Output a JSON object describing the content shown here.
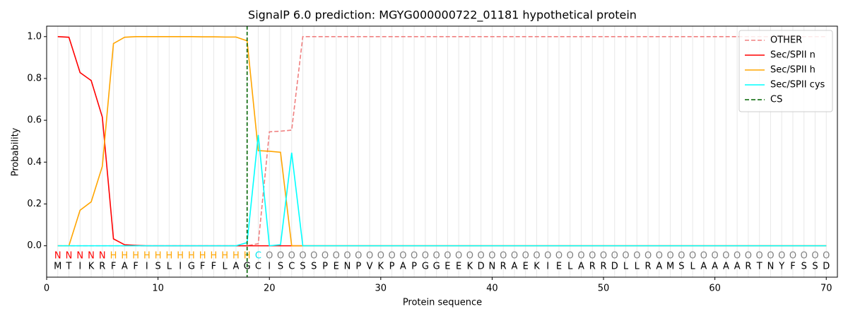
{
  "chart_data": {
    "type": "line",
    "title": "SignalP 6.0 prediction: MGYG000000722_01181 hypothetical protein",
    "xlabel": "Protein sequence",
    "ylabel": "Probability",
    "xlim": [
      0,
      71
    ],
    "ylim": [
      -0.15,
      1.05
    ],
    "xticks": [
      0,
      10,
      20,
      30,
      40,
      50,
      60,
      70
    ],
    "yticks": [
      {
        "value": 0,
        "label": "0.0"
      },
      0.2,
      0.4,
      0.6,
      0.8,
      {
        "value": 1,
        "label": "1.0"
      }
    ],
    "x": [
      1,
      2,
      3,
      4,
      5,
      6,
      7,
      8,
      9,
      10,
      11,
      12,
      13,
      14,
      15,
      16,
      17,
      18,
      19,
      20,
      21,
      22,
      23,
      24,
      25,
      26,
      27,
      28,
      29,
      30,
      31,
      32,
      33,
      34,
      35,
      36,
      37,
      38,
      39,
      40,
      41,
      42,
      43,
      44,
      45,
      46,
      47,
      48,
      49,
      50,
      51,
      52,
      53,
      54,
      55,
      56,
      57,
      58,
      59,
      60,
      61,
      62,
      63,
      64,
      65,
      66,
      67,
      68,
      69,
      70
    ],
    "sequence": [
      "M",
      "T",
      "I",
      "K",
      "R",
      "F",
      "A",
      "F",
      "I",
      "S",
      "L",
      "I",
      "G",
      "F",
      "F",
      "L",
      "A",
      "G",
      "C",
      "I",
      "S",
      "C",
      "S",
      "S",
      "P",
      "E",
      "N",
      "P",
      "V",
      "K",
      "P",
      "A",
      "P",
      "G",
      "G",
      "E",
      "E",
      "K",
      "D",
      "N",
      "R",
      "A",
      "E",
      "K",
      "I",
      "E",
      "L",
      "A",
      "R",
      "R",
      "D",
      "L",
      "L",
      "R",
      "A",
      "M",
      "S",
      "L",
      "A",
      "A",
      "A",
      "A",
      "R",
      "T",
      "N",
      "Y",
      "F",
      "S",
      "S",
      "D"
    ],
    "annotation": [
      "N",
      "N",
      "N",
      "N",
      "N",
      "H",
      "H",
      "H",
      "H",
      "H",
      "H",
      "H",
      "H",
      "H",
      "H",
      "H",
      "H",
      "H",
      "C",
      "O",
      "O",
      "O",
      "O",
      "O",
      "O",
      "O",
      "O",
      "O",
      "O",
      "O",
      "O",
      "O",
      "O",
      "O",
      "O",
      "O",
      "O",
      "O",
      "O",
      "O",
      "O",
      "O",
      "O",
      "O",
      "O",
      "O",
      "O",
      "O",
      "O",
      "O",
      "O",
      "O",
      "O",
      "O",
      "O",
      "O",
      "O",
      "O",
      "O",
      "O",
      "O",
      "O",
      "O",
      "O",
      "O",
      "O",
      "O",
      "O",
      "O",
      "O"
    ],
    "annotation_colors": {
      "N": "#ff0000",
      "H": "#ffa500",
      "C": "#00e5ee",
      "O": "#808080"
    },
    "series": [
      {
        "name": "OTHER",
        "color": "#f08080",
        "linestyle": "dashed",
        "values": [
          0,
          0,
          0,
          0,
          0,
          0,
          0,
          0,
          0,
          0,
          0,
          0,
          0,
          0,
          0,
          0,
          0,
          0,
          0.01,
          0.545,
          0.548,
          0.553,
          1,
          1,
          1,
          1,
          1,
          1,
          1,
          1,
          1,
          1,
          1,
          1,
          1,
          1,
          1,
          1,
          1,
          1,
          1,
          1,
          1,
          1,
          1,
          1,
          1,
          1,
          1,
          1,
          1,
          1,
          1,
          1,
          1,
          1,
          1,
          1,
          1,
          1,
          1,
          1,
          1,
          1,
          1,
          1,
          1,
          1,
          1,
          1
        ]
      },
      {
        "name": "Sec/SPII n",
        "color": "#ff0000",
        "linestyle": "solid",
        "values": [
          1,
          0.997,
          0.828,
          0.79,
          0.615,
          0.033,
          0.005,
          0.002,
          0,
          0,
          0,
          0,
          0,
          0,
          0,
          0,
          0,
          0,
          0,
          0,
          0,
          0,
          0,
          0,
          0,
          0,
          0,
          0,
          0,
          0,
          0,
          0,
          0,
          0,
          0,
          0,
          0,
          0,
          0,
          0,
          0,
          0,
          0,
          0,
          0,
          0,
          0,
          0,
          0,
          0,
          0,
          0,
          0,
          0,
          0,
          0,
          0,
          0,
          0,
          0,
          0,
          0,
          0,
          0,
          0,
          0,
          0,
          0,
          0,
          0
        ]
      },
      {
        "name": "Sec/SPII h",
        "color": "#ffa500",
        "linestyle": "solid",
        "values": [
          0,
          0,
          0.17,
          0.21,
          0.38,
          0.967,
          0.997,
          1,
          1,
          1,
          1,
          1,
          1,
          0.999,
          0.999,
          0.998,
          0.998,
          0.98,
          0.455,
          0.452,
          0.447,
          0,
          0,
          0,
          0,
          0,
          0,
          0,
          0,
          0,
          0,
          0,
          0,
          0,
          0,
          0,
          0,
          0,
          0,
          0,
          0,
          0,
          0,
          0,
          0,
          0,
          0,
          0,
          0,
          0,
          0,
          0,
          0,
          0,
          0,
          0,
          0,
          0,
          0,
          0,
          0,
          0,
          0,
          0,
          0,
          0,
          0,
          0,
          0,
          0
        ]
      },
      {
        "name": "Sec/SPII cys",
        "color": "#00ffff",
        "linestyle": "solid",
        "values": [
          0,
          0,
          0,
          0,
          0,
          0,
          0,
          0,
          0,
          0,
          0,
          0,
          0,
          0,
          0,
          0,
          0,
          0.015,
          0.53,
          0,
          0.005,
          0.445,
          0,
          0,
          0,
          0,
          0,
          0,
          0,
          0,
          0,
          0,
          0,
          0,
          0,
          0,
          0,
          0,
          0,
          0,
          0,
          0,
          0,
          0,
          0,
          0,
          0,
          0,
          0,
          0,
          0,
          0,
          0,
          0,
          0,
          0,
          0,
          0,
          0,
          0,
          0,
          0,
          0,
          0,
          0,
          0,
          0,
          0,
          0,
          0
        ]
      }
    ],
    "cs": {
      "name": "CS",
      "color": "#006400",
      "x": 18
    },
    "legend": "upper right",
    "grid": "x"
  }
}
